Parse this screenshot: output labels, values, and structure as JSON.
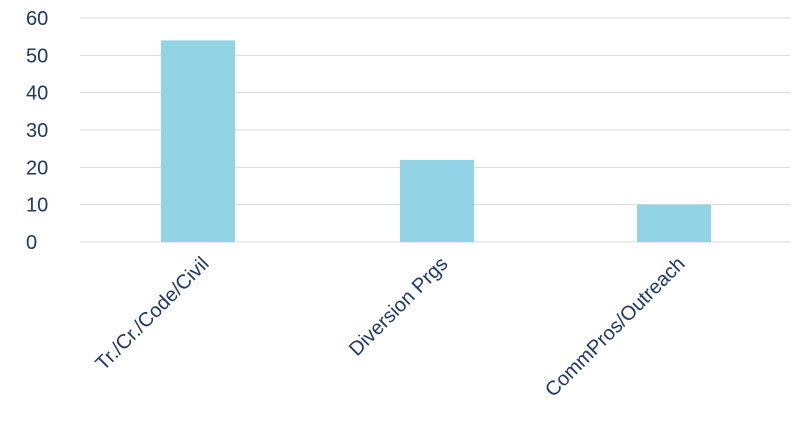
{
  "chart_data": {
    "type": "bar",
    "categories": [
      "Tr./Cr./Code/Civil",
      "Diversion Prgs",
      "CommPros/Outreach"
    ],
    "values": [
      54,
      22,
      10
    ],
    "title": "",
    "xlabel": "",
    "ylabel": "",
    "ylim": [
      0,
      60
    ],
    "yticks": [
      0,
      10,
      20,
      30,
      40,
      50,
      60
    ],
    "grid": true,
    "legend": "none",
    "colors": {
      "bar": "#92d4e6",
      "text": "#1f3864",
      "grid": "#d9d9d9"
    }
  }
}
